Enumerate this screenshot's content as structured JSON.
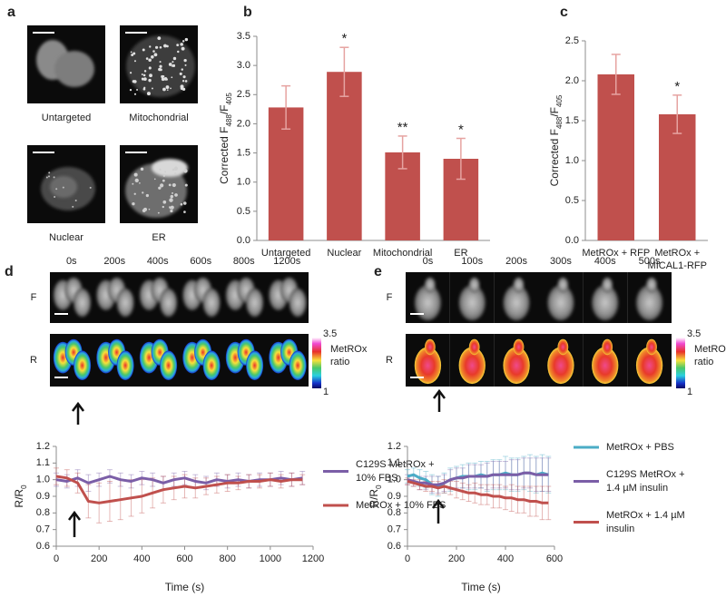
{
  "panel_a": {
    "label": "a",
    "captions": [
      "Untargeted",
      "Mitochondrial",
      "Nuclear",
      "ER"
    ]
  },
  "image_strips": [
    {
      "label": "d",
      "times": [
        "0s",
        "200s",
        "400s",
        "600s",
        "800s",
        "1200s"
      ],
      "rows": [
        "F",
        "R"
      ],
      "colorbar_max": 3.5,
      "colorbar_min": 1,
      "colorbar_label": [
        "MetROx",
        "ratio"
      ]
    },
    {
      "label": "e",
      "times": [
        "0s",
        "100s",
        "200s",
        "300s",
        "400s",
        "500s"
      ],
      "rows": [
        "F",
        "R"
      ],
      "colorbar_max": 3.5,
      "colorbar_min": 1,
      "colorbar_label": [
        "MetROx",
        "ratio"
      ]
    }
  ],
  "chart_data": [
    {
      "type": "bar",
      "label": "b",
      "ylabel": [
        "Corrected F",
        "488",
        "/F",
        "405"
      ],
      "categories": [
        "Untargeted",
        "Nuclear",
        "Mitochondrial",
        "ER"
      ],
      "values": [
        2.28,
        2.89,
        1.51,
        1.4
      ],
      "errors": [
        0.37,
        0.42,
        0.28,
        0.35
      ],
      "annotations": [
        null,
        "*",
        "**",
        "*"
      ],
      "color": "#c0504d",
      "error_color": "#e6a3a1",
      "ylim": [
        0,
        3.5
      ],
      "yticks": [
        {
          "value": 0,
          "label": "0.0"
        },
        {
          "value": 0.5,
          "label": "0.5"
        },
        {
          "value": 1,
          "label": "1.0"
        },
        {
          "value": 1.5,
          "label": "1.5"
        },
        {
          "value": 2,
          "label": "2.0"
        },
        {
          "value": 2.5,
          "label": "2.5"
        },
        {
          "value": 3,
          "label": "3.0"
        },
        {
          "value": 3.5,
          "label": "3.5"
        }
      ]
    },
    {
      "type": "bar",
      "label": "c",
      "ylabel": [
        "Corrected F",
        "488",
        "/F",
        "405"
      ],
      "categories": [
        [
          "MetROx + RFP"
        ],
        [
          "MetROx +",
          "MICAL1-RFP"
        ]
      ],
      "values": [
        2.08,
        1.58
      ],
      "errors": [
        0.25,
        0.24
      ],
      "annotations": [
        null,
        "*"
      ],
      "color": "#c0504d",
      "error_color": "#e6a3a1",
      "ylim": [
        0,
        2.5
      ],
      "yticks": [
        {
          "value": 0,
          "label": "0.0"
        },
        {
          "value": 0.5,
          "label": "0.5"
        },
        {
          "value": 1,
          "label": "1.0"
        },
        {
          "value": 1.5,
          "label": "1.5"
        },
        {
          "value": 2,
          "label": "2.0"
        },
        {
          "value": 2.5,
          "label": "2.5"
        }
      ]
    },
    {
      "type": "line",
      "ylabel": [
        "R/R",
        "0"
      ],
      "xlabel": "Time (s)",
      "x": [
        0,
        50,
        100,
        150,
        200,
        250,
        300,
        350,
        400,
        450,
        500,
        550,
        600,
        650,
        700,
        750,
        800,
        850,
        900,
        950,
        1000,
        1050,
        1100,
        1150
      ],
      "series": [
        {
          "name": "C129S MetROx + 10% FBS",
          "color": "#7b5ea7",
          "values": [
            1.0,
            0.99,
            1.01,
            0.98,
            1.0,
            1.02,
            1.0,
            0.99,
            1.01,
            1.0,
            0.98,
            1.0,
            1.01,
            0.99,
            0.98,
            1.0,
            0.99,
            1.0,
            0.99,
            1.0,
            1.0,
            1.01,
            1.0,
            1.01
          ],
          "errors": [
            0.04,
            0.04,
            0.05,
            0.05,
            0.04,
            0.04,
            0.04,
            0.04,
            0.04,
            0.04,
            0.04,
            0.04,
            0.04,
            0.04,
            0.04,
            0.04,
            0.04,
            0.04,
            0.04,
            0.04,
            0.04,
            0.04,
            0.04,
            0.04
          ]
        },
        {
          "name": "MetROx + 10% FBS",
          "color": "#c0504d",
          "values": [
            1.02,
            1.01,
            0.98,
            0.87,
            0.86,
            0.87,
            0.88,
            0.89,
            0.9,
            0.92,
            0.94,
            0.95,
            0.96,
            0.95,
            0.96,
            0.97,
            0.98,
            0.98,
            0.99,
            0.99,
            1.0,
            0.99,
            1.0,
            1.0
          ],
          "errors": [
            0.05,
            0.05,
            0.06,
            0.1,
            0.12,
            0.12,
            0.12,
            0.11,
            0.1,
            0.09,
            0.08,
            0.07,
            0.07,
            0.06,
            0.05,
            0.05,
            0.05,
            0.04,
            0.04,
            0.04,
            0.04,
            0.04,
            0.04,
            0.03
          ]
        }
      ],
      "xlim": [
        0,
        1200
      ],
      "xticks": [
        0,
        200,
        400,
        600,
        800,
        1000,
        1200
      ],
      "ylim": [
        0.6,
        1.2
      ],
      "yticks": [
        {
          "value": 0.6,
          "label": "0.6"
        },
        {
          "value": 0.7,
          "label": "0.7"
        },
        {
          "value": 0.8,
          "label": "0.8"
        },
        {
          "value": 0.9,
          "label": "0.9"
        },
        {
          "value": 1,
          "label": "1.0"
        },
        {
          "value": 1.1,
          "label": "1.1"
        },
        {
          "value": 1.2,
          "label": "1.2"
        }
      ]
    },
    {
      "type": "line",
      "ylabel": [
        "R/R",
        "0"
      ],
      "xlabel": "Time (s)",
      "x": [
        0,
        25,
        50,
        75,
        100,
        125,
        150,
        175,
        200,
        225,
        250,
        275,
        300,
        325,
        350,
        375,
        400,
        425,
        450,
        475,
        500,
        525,
        550,
        575
      ],
      "series": [
        {
          "name": "MetROx + PBS",
          "color": "#4bacc6",
          "values": [
            1.02,
            1.03,
            1.01,
            1.0,
            0.97,
            0.96,
            0.98,
            1.0,
            1.01,
            1.02,
            1.02,
            1.02,
            1.03,
            1.02,
            1.03,
            1.03,
            1.04,
            1.03,
            1.03,
            1.04,
            1.04,
            1.03,
            1.04,
            1.03
          ],
          "errors": [
            0.04,
            0.04,
            0.05,
            0.05,
            0.06,
            0.06,
            0.06,
            0.07,
            0.07,
            0.07,
            0.08,
            0.08,
            0.08,
            0.09,
            0.09,
            0.09,
            0.1,
            0.1,
            0.1,
            0.1,
            0.11,
            0.11,
            0.11,
            0.11
          ]
        },
        {
          "name": "C129S MetROx + 1.4 µM insulin",
          "color": "#7b5ea7",
          "values": [
            1.0,
            0.99,
            0.98,
            0.98,
            0.97,
            0.97,
            0.98,
            1.0,
            1.01,
            1.01,
            1.02,
            1.02,
            1.02,
            1.02,
            1.03,
            1.03,
            1.03,
            1.03,
            1.03,
            1.04,
            1.04,
            1.03,
            1.03,
            1.03
          ],
          "errors": [
            0.03,
            0.03,
            0.04,
            0.04,
            0.05,
            0.05,
            0.05,
            0.06,
            0.06,
            0.06,
            0.07,
            0.07,
            0.07,
            0.08,
            0.08,
            0.08,
            0.08,
            0.09,
            0.09,
            0.09,
            0.09,
            0.1,
            0.1,
            0.1
          ]
        },
        {
          "name": "MetROx + 1.4 µM insulin",
          "color": "#c0504d",
          "values": [
            0.99,
            0.98,
            0.97,
            0.96,
            0.96,
            0.95,
            0.96,
            0.95,
            0.94,
            0.93,
            0.92,
            0.92,
            0.91,
            0.91,
            0.9,
            0.9,
            0.89,
            0.89,
            0.88,
            0.88,
            0.87,
            0.87,
            0.86,
            0.86
          ],
          "errors": [
            0.02,
            0.02,
            0.03,
            0.03,
            0.03,
            0.04,
            0.04,
            0.04,
            0.05,
            0.05,
            0.05,
            0.06,
            0.06,
            0.06,
            0.07,
            0.07,
            0.07,
            0.08,
            0.08,
            0.08,
            0.09,
            0.09,
            0.1,
            0.1
          ]
        }
      ],
      "xlim": [
        0,
        600
      ],
      "xticks": [
        0,
        200,
        400,
        600
      ],
      "ylim": [
        0.6,
        1.2
      ],
      "yticks": [
        {
          "value": 0.6,
          "label": "0.6"
        },
        {
          "value": 0.7,
          "label": "0.7"
        },
        {
          "value": 0.8,
          "label": "0.8"
        },
        {
          "value": 0.9,
          "label": "0.9"
        },
        {
          "value": 1,
          "label": "1.0"
        },
        {
          "value": 1.1,
          "label": "1.1"
        },
        {
          "value": 1.2,
          "label": "1.2"
        }
      ]
    }
  ]
}
